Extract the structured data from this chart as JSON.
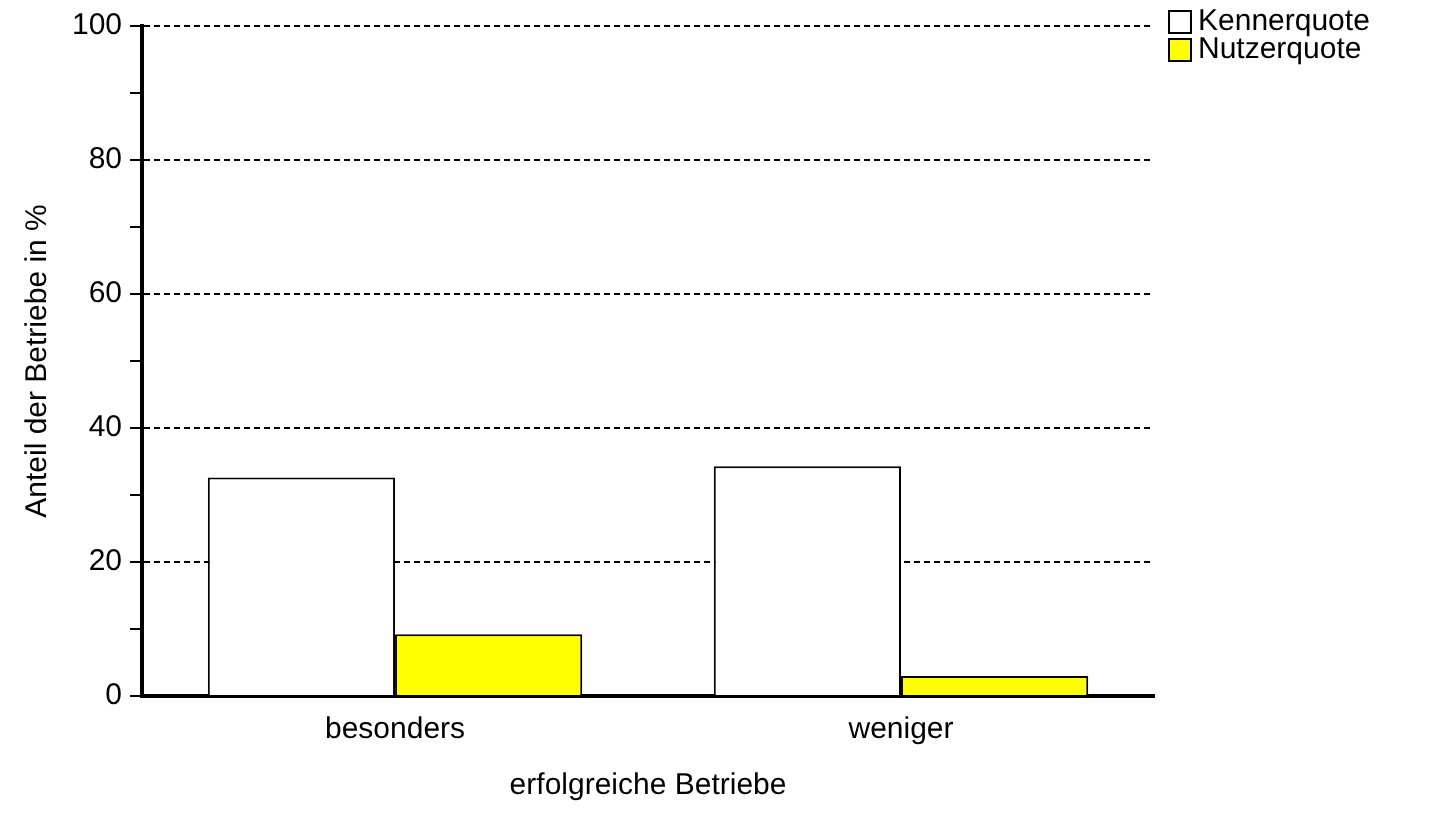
{
  "chart_data": {
    "type": "bar",
    "xlabel": "erfolgreiche Betriebe",
    "ylabel": "Anteil der Betriebe in %",
    "categories": [
      "besonders",
      "weniger"
    ],
    "series": [
      {
        "name": "Kennerquote",
        "color": "#ffffff",
        "values": [
          32.6,
          34.3
        ]
      },
      {
        "name": "Nutzerquote",
        "color": "#ffff00",
        "values": [
          9.2,
          3.0
        ]
      }
    ],
    "ylim": [
      0,
      100
    ],
    "yticks": [
      0,
      {
        "value": 10,
        "label": null
      },
      20,
      {
        "value": 30,
        "label": null
      },
      40,
      {
        "value": 50,
        "label": null
      },
      60,
      {
        "value": 70,
        "label": null
      },
      80,
      {
        "value": 90,
        "label": null
      },
      100
    ],
    "grid": "y",
    "legend": "top right"
  }
}
